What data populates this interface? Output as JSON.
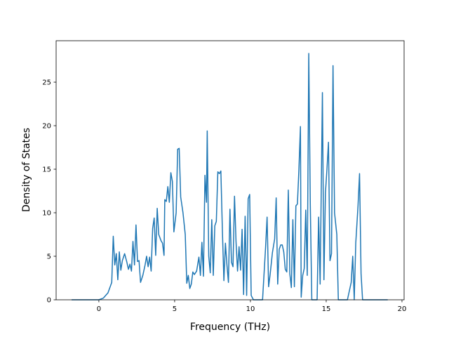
{
  "chart_data": {
    "type": "line",
    "x_label": "Frequency (THz)",
    "y_label": "Density of States",
    "color": "#1f77b4",
    "xlim": [
      -2.82,
      20.14
    ],
    "ylim": [
      0,
      29.76
    ],
    "xticks": [
      0,
      5,
      10,
      15,
      20
    ],
    "yticks": [
      0,
      5,
      10,
      15,
      20,
      25
    ],
    "x": [
      -1.8,
      0,
      0.3,
      0.6,
      0.85,
      0.95,
      1.05,
      1.15,
      1.25,
      1.35,
      1.45,
      1.55,
      1.7,
      1.85,
      1.95,
      2.05,
      2.15,
      2.25,
      2.35,
      2.45,
      2.55,
      2.65,
      2.75,
      2.9,
      3.05,
      3.15,
      3.25,
      3.35,
      3.45,
      3.55,
      3.65,
      3.75,
      3.85,
      3.95,
      4.1,
      4.2,
      4.3,
      4.35,
      4.45,
      4.55,
      4.65,
      4.75,
      4.85,
      4.95,
      5.1,
      5.2,
      5.3,
      5.4,
      5.55,
      5.7,
      5.8,
      5.9,
      6.0,
      6.1,
      6.2,
      6.3,
      6.45,
      6.6,
      6.7,
      6.8,
      6.9,
      7.0,
      7.1,
      7.15,
      7.25,
      7.35,
      7.45,
      7.55,
      7.65,
      7.75,
      7.85,
      7.95,
      8.05,
      8.15,
      8.25,
      8.35,
      8.45,
      8.55,
      8.65,
      8.75,
      8.85,
      8.95,
      9.05,
      9.15,
      9.25,
      9.35,
      9.45,
      9.55,
      9.65,
      9.75,
      9.85,
      9.95,
      10.05,
      10.2,
      10.8,
      11.0,
      11.1,
      11.2,
      11.3,
      11.45,
      11.6,
      11.7,
      11.8,
      11.9,
      12.0,
      12.1,
      12.2,
      12.3,
      12.4,
      12.5,
      12.6,
      12.7,
      12.8,
      12.9,
      13.0,
      13.1,
      13.2,
      13.3,
      13.35,
      13.45,
      13.55,
      13.65,
      13.75,
      13.85,
      13.95,
      14.05,
      14.4,
      14.5,
      14.6,
      14.75,
      14.85,
      14.95,
      15.05,
      15.15,
      15.25,
      15.35,
      15.45,
      15.55,
      15.7,
      15.8,
      16.4,
      16.65,
      16.75,
      16.85,
      16.95,
      17.1,
      17.2,
      17.3,
      17.4,
      19.06
    ],
    "values": [
      0,
      0,
      0.2,
      0.8,
      2,
      7.3,
      4,
      5.3,
      2.3,
      5.5,
      3.4,
      4.5,
      5.3,
      4.3,
      3.5,
      4.1,
      3.3,
      6.7,
      4,
      8.6,
      4.4,
      4.5,
      2,
      2.8,
      4,
      5,
      3.8,
      4.9,
      3.3,
      8.2,
      9.4,
      5.1,
      10.5,
      7.5,
      6.8,
      6.5,
      5.1,
      11.5,
      11.3,
      13,
      11.2,
      14.6,
      13.6,
      7.8,
      10,
      17.3,
      17.4,
      11.8,
      10,
      7.5,
      1.9,
      2.8,
      1.3,
      1.8,
      3.2,
      2.9,
      3.3,
      4.9,
      2.8,
      6.6,
      2.7,
      14.3,
      11.2,
      19.4,
      5,
      3.1,
      9.2,
      2.8,
      8.5,
      9,
      14.7,
      14.5,
      14.8,
      8,
      2.2,
      6.5,
      4,
      2,
      10.4,
      4.3,
      3.8,
      11.9,
      6.7,
      3.3,
      6.1,
      3.4,
      8.1,
      0.6,
      9.6,
      0.5,
      11.6,
      12.1,
      0.5,
      0,
      0,
      6,
      9.5,
      1.5,
      2.9,
      5.4,
      7,
      11.7,
      1.8,
      5.8,
      6.3,
      6.3,
      5.5,
      3.5,
      3.2,
      12.6,
      3,
      1.4,
      9.2,
      1.5,
      10.8,
      11,
      15,
      19.9,
      0.3,
      2.8,
      3.6,
      10.3,
      2.8,
      28.3,
      11,
      0,
      0,
      9.5,
      1.8,
      23.8,
      2.3,
      12.3,
      15,
      18.1,
      4.5,
      5.3,
      26.9,
      10,
      7.5,
      0,
      0,
      2,
      5,
      0,
      6.5,
      10.8,
      14.5,
      3,
      0,
      0
    ]
  }
}
